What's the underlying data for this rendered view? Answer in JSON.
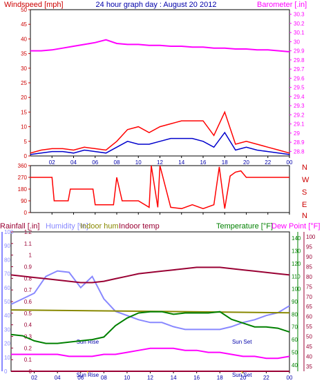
{
  "title": "24 hour graph day : August 20 2012",
  "x_ticks": [
    "02",
    "04",
    "06",
    "08",
    "10",
    "12",
    "14",
    "16",
    "18",
    "20",
    "22",
    "00"
  ],
  "sun": {
    "rise_label": "Sun Rise",
    "set_label": "Sun Set",
    "rise_marker": "Sun Rise",
    "set_marker": "Sun Set",
    "rise_hour": 6.6,
    "set_hour": 19.9
  },
  "colors": {
    "wind_gust": "#ff0000",
    "wind_avg": "#0000cc",
    "barometer": "#ff00ff",
    "direction": "#ff0000",
    "temperature": "#008000",
    "dewpoint": "#ff00ff",
    "humidity": "#8888ff",
    "indoor_hum": "#888800",
    "indoor_temp": "#990033",
    "frame": "#000000",
    "xtick": "#0000aa"
  },
  "chart_data": [
    {
      "type": "line",
      "name": "wind-barometer",
      "labels": {
        "left": "Windspeed [mph]",
        "right": "Barometer [.in]"
      },
      "left_axis": {
        "ticks": [
          0,
          5,
          10,
          15,
          20,
          25,
          30,
          35,
          40,
          45,
          50
        ],
        "ylim": [
          0,
          50
        ]
      },
      "right_axis": {
        "ticks": [
          "28.8",
          "28.9",
          "29",
          "29.1",
          "29.2",
          "29.3",
          "29.4",
          "29.5",
          "29.6",
          "29.7",
          "29.8",
          "29.9",
          "30",
          "30.1",
          "30.2",
          "30.3"
        ],
        "ylim": [
          28.75,
          30.35
        ]
      },
      "series": [
        {
          "key": "barometer",
          "axis": "right",
          "x": [
            0,
            1,
            2,
            3,
            4,
            5,
            6,
            7,
            8,
            9,
            10,
            11,
            12,
            13,
            14,
            15,
            16,
            17,
            18,
            19,
            20,
            21,
            22,
            23,
            24
          ],
          "y": [
            29.9,
            29.9,
            29.91,
            29.93,
            29.95,
            29.97,
            29.99,
            30.02,
            29.98,
            29.97,
            29.97,
            29.96,
            29.96,
            29.95,
            29.95,
            29.94,
            29.94,
            29.93,
            29.93,
            29.92,
            29.92,
            29.91,
            29.91,
            29.9,
            29.89
          ]
        },
        {
          "key": "wind_gust",
          "axis": "left",
          "x": [
            0,
            1,
            2,
            3,
            4,
            5,
            6,
            7,
            8,
            9,
            10,
            11,
            12,
            13,
            14,
            15,
            16,
            17,
            18,
            19,
            20,
            21,
            22,
            23,
            24
          ],
          "y": [
            1,
            2,
            2.5,
            2.5,
            2,
            3,
            2.5,
            2,
            5,
            9,
            10,
            8,
            10,
            11,
            12,
            12,
            12,
            7,
            15,
            4,
            5,
            4,
            3,
            2,
            1
          ]
        },
        {
          "key": "wind_avg",
          "axis": "left",
          "x": [
            0,
            1,
            2,
            3,
            4,
            5,
            6,
            7,
            8,
            9,
            10,
            11,
            12,
            13,
            14,
            15,
            16,
            17,
            18,
            19,
            20,
            21,
            22,
            23,
            24
          ],
          "y": [
            0.5,
            1,
            1.5,
            1.5,
            1,
            2,
            1.5,
            1,
            3,
            5,
            4,
            4,
            5,
            6,
            6,
            6,
            5,
            3,
            8,
            2,
            3,
            2,
            1.5,
            1,
            0.5
          ]
        }
      ]
    },
    {
      "type": "line",
      "name": "wind-direction",
      "left_axis": {
        "ticks": [
          0,
          90,
          180,
          270,
          360
        ],
        "ylim": [
          0,
          360
        ]
      },
      "right_axis": {
        "ticks": [
          "N",
          "W",
          "S",
          "E",
          "N"
        ]
      },
      "series": [
        {
          "key": "direction",
          "x": [
            0,
            2,
            2.2,
            3.5,
            3.7,
            5.8,
            6,
            7.7,
            8,
            8.5,
            10,
            11,
            11.2,
            11.8,
            12,
            13,
            14,
            15,
            16,
            17,
            17.5,
            18,
            18.5,
            19,
            19.5,
            20,
            24
          ],
          "y": [
            270,
            270,
            90,
            90,
            180,
            180,
            60,
            60,
            270,
            90,
            90,
            40,
            360,
            40,
            360,
            40,
            30,
            60,
            30,
            60,
            350,
            30,
            280,
            310,
            320,
            270,
            270
          ]
        }
      ]
    },
    {
      "type": "line",
      "name": "temperature-humidity",
      "labels": {
        "rainfall": "Rainfall [.in]",
        "humidity": "Humidity [%]",
        "indoor_hum": "Indoor hum",
        "indoor_temp": "Indoor temp",
        "temperature": "Temperature [°F]",
        "dewpoint": "Dew Point [°F]"
      },
      "rain_axis": {
        "ticks": [
          "0",
          "0.1",
          "0.2",
          "0.3",
          "0.4",
          "0.5",
          "0.6",
          "0.7",
          "0.8",
          "0.9",
          "1",
          "1.1",
          "1.2"
        ],
        "ylim": [
          0,
          1.2
        ]
      },
      "humidity_axis": {
        "ticks": [
          0,
          10,
          20,
          30,
          40,
          50,
          60,
          70,
          80,
          90,
          100
        ],
        "ylim": [
          0,
          100
        ]
      },
      "temperature_axis": {
        "ticks": [
          40,
          50,
          60,
          70,
          80,
          90,
          100,
          110,
          120,
          130,
          140
        ],
        "ylim": [
          35,
          145
        ]
      },
      "dewpoint_axis": {
        "ticks": [
          35,
          40,
          45,
          50,
          55,
          60,
          65,
          70,
          75,
          80,
          85,
          90,
          95,
          100
        ],
        "ylim": [
          32.5,
          102.5
        ]
      },
      "series": [
        {
          "key": "humidity",
          "axis": "humidity",
          "x": [
            0,
            1,
            2,
            3,
            4,
            5,
            6,
            7,
            8,
            9,
            10,
            11,
            12,
            13,
            14,
            15,
            16,
            17,
            18,
            19,
            20,
            21,
            22,
            23,
            24
          ],
          "y": [
            48,
            52,
            56,
            68,
            72,
            71,
            60,
            68,
            52,
            43,
            40,
            37,
            35,
            35,
            32,
            30,
            30,
            30,
            30,
            32,
            35,
            37,
            40,
            42,
            47
          ]
        },
        {
          "key": "indoor_hum",
          "axis": "humidity",
          "x": [
            0,
            24
          ],
          "y": [
            44,
            42
          ]
        },
        {
          "key": "indoor_temp",
          "axis": "temperature",
          "x": [
            0,
            1,
            2,
            3,
            4,
            5,
            6,
            7,
            8,
            9,
            10,
            11,
            12,
            13,
            14,
            15,
            16,
            17,
            18,
            19,
            20,
            21,
            22,
            23,
            24
          ],
          "y": [
            111,
            110,
            109,
            108,
            107,
            106,
            105,
            105,
            106,
            108,
            110,
            112,
            113,
            114,
            115,
            116,
            117,
            117,
            117,
            116,
            115,
            114,
            113,
            112,
            111
          ]
        },
        {
          "key": "temperature",
          "axis": "temperature",
          "x": [
            0,
            1,
            2,
            3,
            4,
            5,
            6,
            7,
            8,
            9,
            10,
            11,
            12,
            13,
            14,
            15,
            16,
            17,
            18,
            19,
            20,
            21,
            22,
            23,
            24
          ],
          "y": [
            64,
            63,
            59,
            57,
            57,
            58,
            59,
            60,
            62,
            71,
            77,
            81,
            82,
            82,
            80,
            81,
            81,
            81,
            82,
            76,
            73,
            70,
            70,
            69,
            66
          ]
        },
        {
          "key": "dewpoint",
          "axis": "dewpoint",
          "x": [
            0,
            1,
            2,
            3,
            4,
            5,
            6,
            7,
            8,
            9,
            10,
            11,
            12,
            13,
            14,
            15,
            16,
            17,
            18,
            19,
            20,
            21,
            22,
            23,
            24
          ],
          "y": [
            41,
            41,
            41,
            41,
            41,
            40,
            40,
            40,
            41,
            41,
            42,
            43,
            44,
            44,
            44,
            43,
            43,
            42,
            42,
            41,
            40,
            40,
            39,
            39,
            40
          ]
        },
        {
          "key": "rainfall",
          "axis": "rain",
          "x": [
            0,
            24
          ],
          "y": [
            0,
            0
          ]
        }
      ]
    }
  ]
}
